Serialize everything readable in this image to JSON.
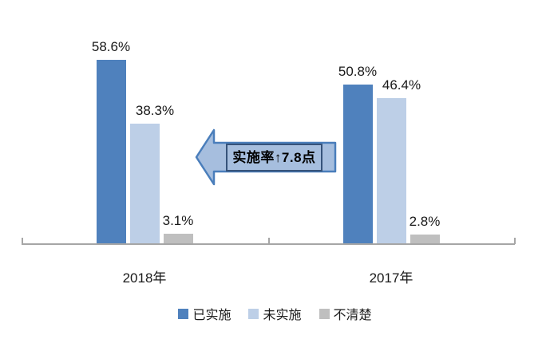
{
  "chart_data": {
    "type": "bar",
    "title": "",
    "categories": [
      "2018年",
      "2017年"
    ],
    "series": [
      {
        "name": "已实施",
        "color": "#4F81BD",
        "values": [
          58.6,
          50.8
        ],
        "labels": [
          "58.6%",
          "50.8%"
        ]
      },
      {
        "name": "未实施",
        "color": "#BDCFE7",
        "values": [
          38.3,
          46.4
        ],
        "labels": [
          "38.3%",
          "46.4%"
        ]
      },
      {
        "name": "不清楚",
        "color": "#BFBFBF",
        "values": [
          3.1,
          2.8
        ],
        "labels": [
          "3.1%",
          "2.8%"
        ]
      }
    ],
    "ylim": [
      0,
      62
    ],
    "grid": false,
    "legend_position": "bottom",
    "axis_color": "#A6A6A6",
    "annotation": {
      "text": "实施率↑7.8点",
      "shape": "left-block-arrow",
      "fill": "#A6BEDE",
      "stroke": "#4A7EBB",
      "text_border": "#36537A"
    }
  }
}
